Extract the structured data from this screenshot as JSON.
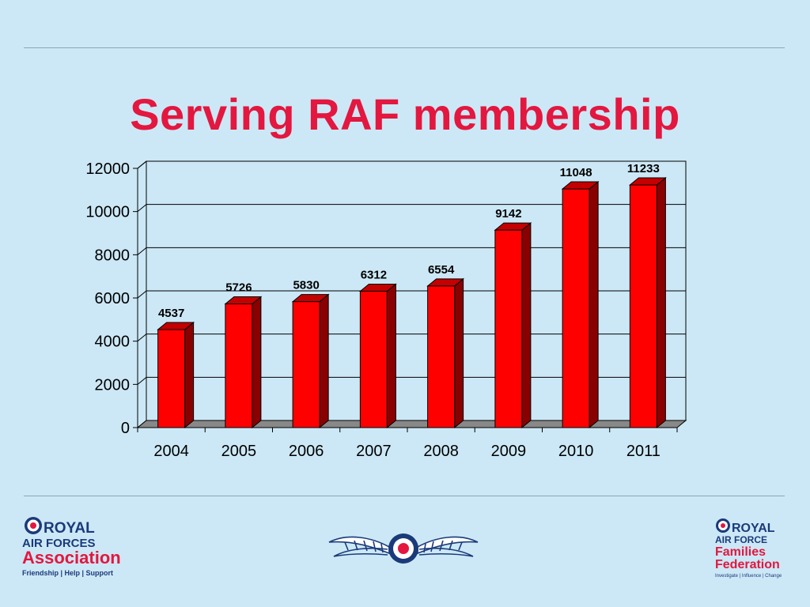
{
  "page": {
    "title": "Serving RAF membership"
  },
  "colors": {
    "background": "#cce8f6",
    "title": "#e3173f",
    "bar_front": "#ff0000",
    "bar_side": "#8a0000",
    "bar_top": "#c40000",
    "floor": "#888888"
  },
  "chart_data": {
    "type": "bar",
    "style": "3d",
    "categories": [
      "2004",
      "2005",
      "2006",
      "2007",
      "2008",
      "2009",
      "2010",
      "2011"
    ],
    "values": [
      4537,
      5726,
      5830,
      6312,
      6554,
      9142,
      11048,
      11233
    ],
    "ylim": [
      0,
      12000
    ],
    "yticks": [
      0,
      2000,
      4000,
      6000,
      8000,
      10000,
      12000
    ],
    "grid": true,
    "data_labels": true
  },
  "logos": {
    "left": {
      "name": "raf-association-logo",
      "text": [
        "ROYAL",
        "AIR FORCES",
        "Association",
        "Friendship | Help | Support"
      ]
    },
    "center": {
      "name": "raf-wings-emblem"
    },
    "right": {
      "name": "raf-families-federation-logo",
      "text": [
        "ROYAL",
        "AIR FORCE",
        "Families",
        "Federation",
        "Investigate | Influence | Change"
      ]
    }
  }
}
